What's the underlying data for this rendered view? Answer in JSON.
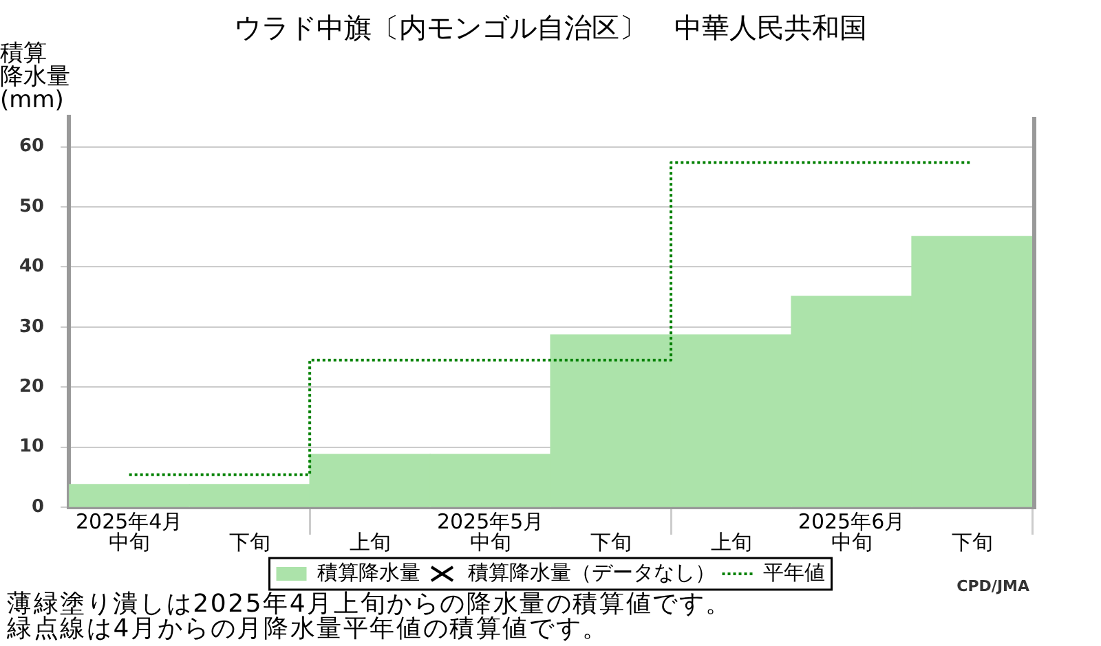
{
  "chart_data": {
    "type": "bar",
    "title": "ウラド中旗〔内モンゴル自治区〕　中華人民共和国",
    "ylabel": "積算降水量(mm)",
    "categories": [
      "2025年4月中旬",
      "下旬",
      "上旬",
      "2025年5月中旬",
      "下旬",
      "上旬",
      "2025年6月中旬",
      "下旬"
    ],
    "series": [
      {
        "name": "積算降水量",
        "color": "#ace3aa",
        "values": [
          3.8,
          3.8,
          8.8,
          8.8,
          28.7,
          28.7,
          35.1,
          45.1
        ]
      },
      {
        "name": "積算降水量（データなし）",
        "type": "scatter",
        "marker": "cross",
        "color": "#000000",
        "values": [
          null,
          null,
          null,
          null,
          null,
          null,
          null,
          null
        ]
      },
      {
        "name": "平年値",
        "type": "step",
        "line_style": "dotted",
        "color": "#008000",
        "values": [
          5.4,
          5.4,
          24.5,
          24.5,
          24.5,
          57.4,
          57.4,
          57.4
        ]
      }
    ],
    "ylim": [
      0,
      65
    ],
    "yticks": [
      0,
      10,
      20,
      30,
      40,
      50,
      60
    ],
    "grid": "y",
    "legend": "bottom",
    "annotations": [
      "薄緑塗り潰しは2025年4月上旬からの降水量の積算値です。",
      "緑点線は4月からの月降水量平年値の積算値です。",
      "CPD/JMA"
    ]
  }
}
